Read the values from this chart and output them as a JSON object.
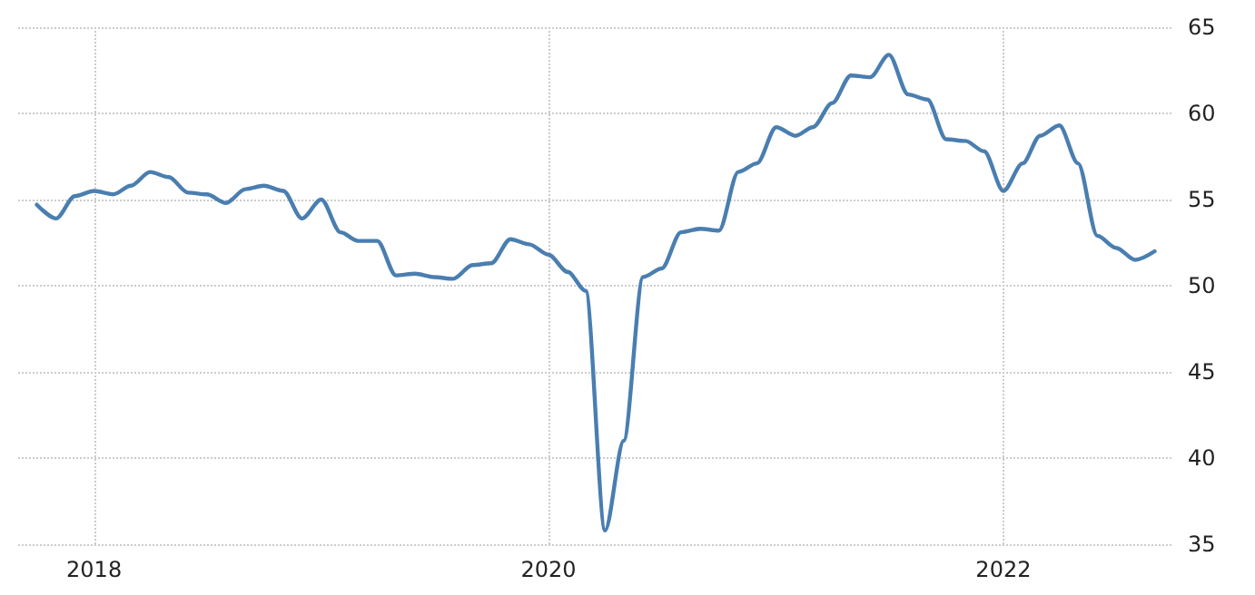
{
  "chart_data": {
    "type": "line",
    "x": [
      "2017-10",
      "2017-11",
      "2017-12",
      "2018-01",
      "2018-02",
      "2018-03",
      "2018-04",
      "2018-05",
      "2018-06",
      "2018-07",
      "2018-08",
      "2018-09",
      "2018-10",
      "2018-11",
      "2018-12",
      "2019-01",
      "2019-02",
      "2019-03",
      "2019-04",
      "2019-05",
      "2019-06",
      "2019-07",
      "2019-08",
      "2019-09",
      "2019-10",
      "2019-11",
      "2019-12",
      "2020-01",
      "2020-02",
      "2020-03",
      "2020-04",
      "2020-05",
      "2020-06",
      "2020-07",
      "2020-08",
      "2020-09",
      "2020-10",
      "2020-11",
      "2020-12",
      "2021-01",
      "2021-02",
      "2021-03",
      "2021-04",
      "2021-05",
      "2021-06",
      "2021-07",
      "2021-08",
      "2021-09",
      "2021-10",
      "2021-11",
      "2021-12",
      "2022-01",
      "2022-02",
      "2022-03",
      "2022-04",
      "2022-05",
      "2022-06",
      "2022-07",
      "2022-08",
      "2022-09"
    ],
    "series": [
      {
        "color": "#4a7eb0",
        "values": [
          54.7,
          53.9,
          55.2,
          55.5,
          55.3,
          55.8,
          56.6,
          56.3,
          55.4,
          55.3,
          54.8,
          55.6,
          55.8,
          55.5,
          53.9,
          55.0,
          53.1,
          52.6,
          52.6,
          50.6,
          50.7,
          50.5,
          50.4,
          51.2,
          51.3,
          52.7,
          52.4,
          51.8,
          50.8,
          49.7,
          35.8,
          41.0,
          50.5,
          51.0,
          53.1,
          53.3,
          53.2,
          56.6,
          57.1,
          59.2,
          58.7,
          59.2,
          60.6,
          62.2,
          62.1,
          63.4,
          61.1,
          60.8,
          58.5,
          58.4,
          57.8,
          55.5,
          57.1,
          58.7,
          59.3,
          57.1,
          52.9,
          52.2,
          51.5,
          52.0
        ]
      }
    ],
    "xlim": [
      "2017-09",
      "2022-10"
    ],
    "xticks": [
      "2018",
      "2020",
      "2022"
    ],
    "ylim": [
      35,
      65
    ],
    "yticks": [
      35,
      40,
      45,
      50,
      55,
      60,
      65
    ],
    "grid": true,
    "marker": "none",
    "line_style": "solid"
  }
}
